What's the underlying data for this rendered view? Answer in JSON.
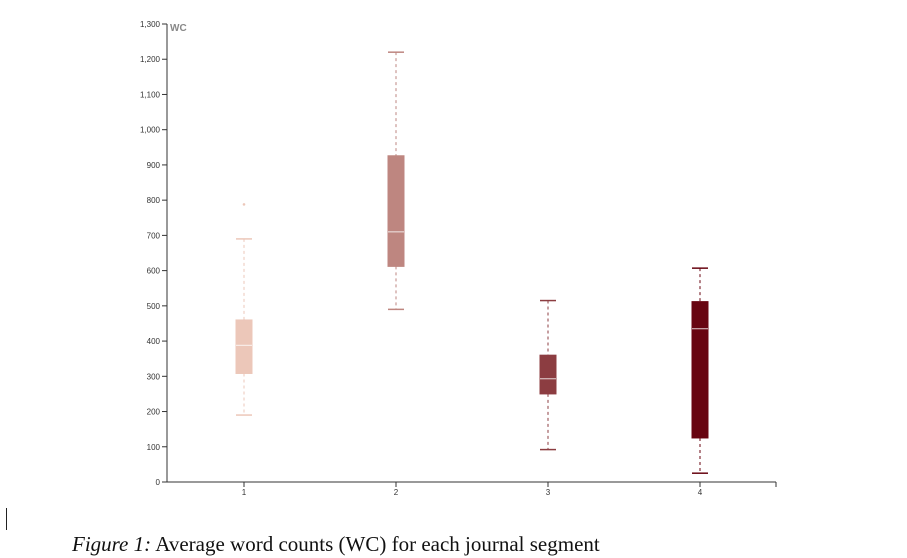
{
  "chart_data": {
    "type": "boxplot",
    "ylabel": "WC",
    "ylim": [
      0,
      1300
    ],
    "yticks": [
      0,
      100,
      200,
      300,
      400,
      500,
      600,
      700,
      800,
      900,
      1000,
      1100,
      1200,
      1300
    ],
    "ytick_labels": [
      "0",
      "100",
      "200",
      "300",
      "400",
      "500",
      "600",
      "700",
      "800",
      "900",
      "1,000",
      "1,100",
      "1,200",
      "1,300"
    ],
    "categories": [
      "1",
      "2",
      "3",
      "4"
    ],
    "boxes": [
      {
        "category": "1",
        "min": 190,
        "q1": 308,
        "median": 388,
        "q3": 460,
        "max": 690,
        "outliers": [
          788
        ],
        "color": "#ecc7b9"
      },
      {
        "category": "2",
        "min": 490,
        "q1": 612,
        "median": 710,
        "q3": 926,
        "max": 1220,
        "outliers": [],
        "color": "#be8680"
      },
      {
        "category": "3",
        "min": 92,
        "q1": 250,
        "median": 293,
        "q3": 360,
        "max": 515,
        "outliers": [],
        "color": "#8c3d41"
      },
      {
        "category": "4",
        "min": 25,
        "q1": 125,
        "median": 435,
        "q3": 512,
        "max": 607,
        "outliers": [],
        "color": "#680511"
      }
    ],
    "grid": false,
    "legend": "none"
  },
  "caption": {
    "label": "Figure 1:",
    "text": " Average word counts (WC) for each journal segment"
  }
}
